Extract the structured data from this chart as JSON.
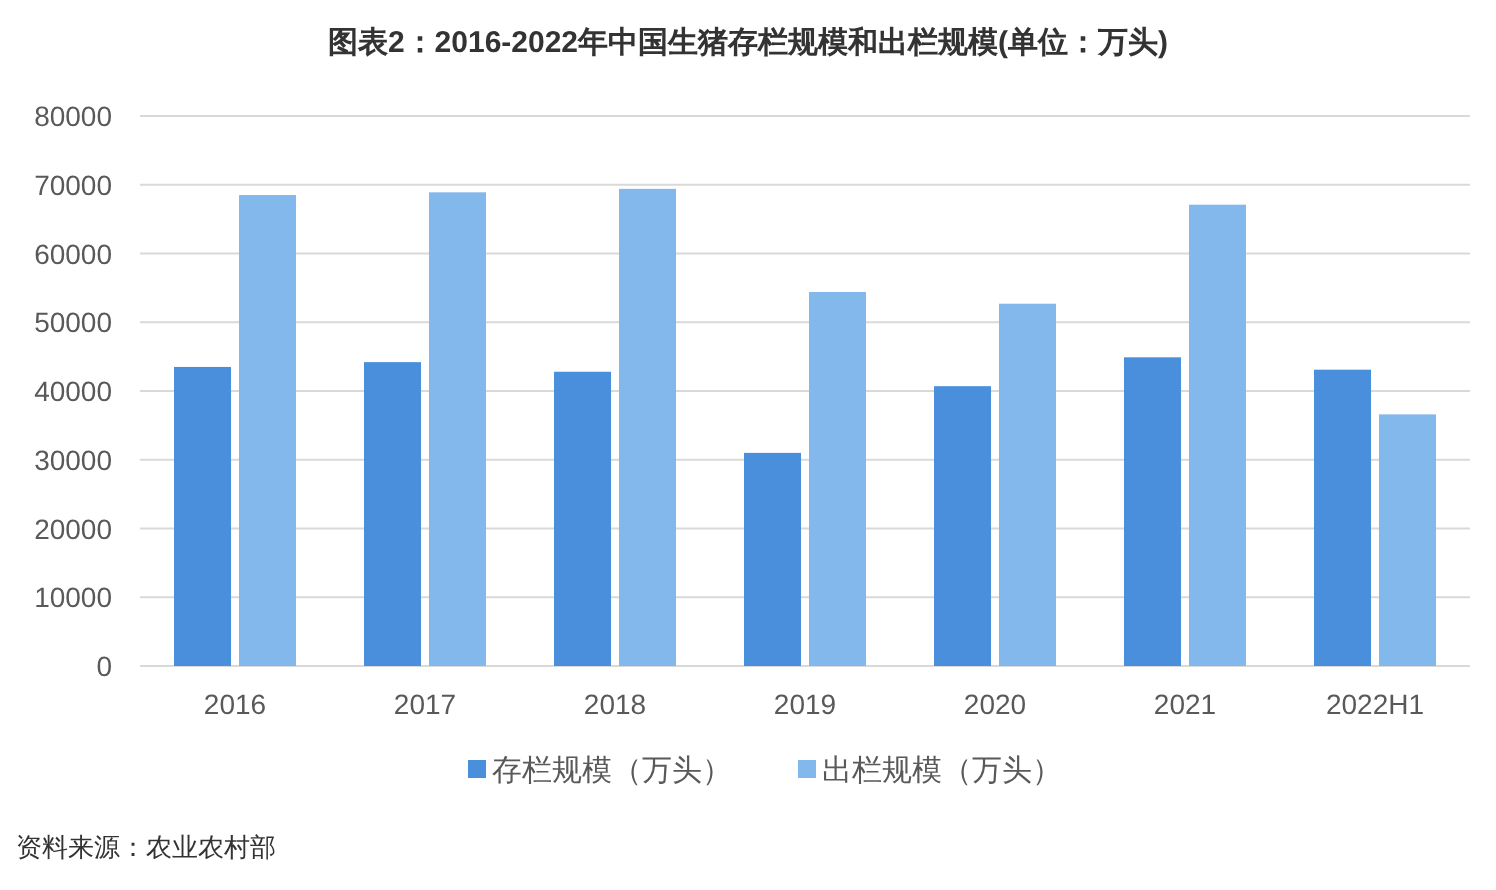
{
  "chart_data": {
    "type": "bar",
    "title": "图表2：2016-2022年中国生猪存栏规模和出栏规模(单位：万头)",
    "categories": [
      "2016",
      "2017",
      "2018",
      "2019",
      "2020",
      "2021",
      "2022H1"
    ],
    "series": [
      {
        "name": "存栏规模（万头）",
        "color": "#4a8fdc",
        "values": [
          43500,
          44200,
          42800,
          31000,
          40700,
          44900,
          43100
        ]
      },
      {
        "name": "出栏规模（万头）",
        "color": "#83b8ec",
        "values": [
          68500,
          68900,
          69400,
          54400,
          52700,
          67100,
          36600
        ]
      }
    ],
    "ylim": [
      0,
      80000
    ],
    "yticks": [
      0,
      10000,
      20000,
      30000,
      40000,
      50000,
      60000,
      70000,
      80000
    ],
    "grid": "y",
    "legend": "bottom",
    "annotations": [
      "资料来源：农业农村部"
    ]
  }
}
